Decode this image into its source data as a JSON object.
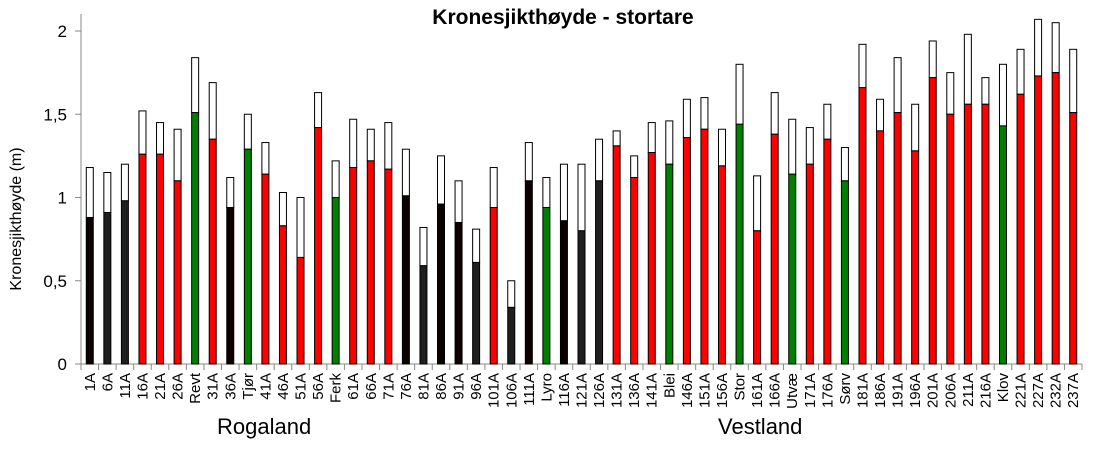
{
  "chart_data": {
    "type": "bar",
    "stacked": true,
    "title": "Kronesjikthøyde - stortare",
    "ylabel": "Kronesjikthøyde  (m)",
    "xlabel": "",
    "ylim": [
      0,
      2.1
    ],
    "yticks": [
      "0",
      "0,5",
      "1",
      "1,5",
      "2"
    ],
    "ytick_values": [
      0,
      0.5,
      1,
      1.5,
      2
    ],
    "grid": false,
    "groups": [
      {
        "label": "Rogaland",
        "from": "1A",
        "to": "121A"
      },
      {
        "label": "Vestland",
        "from": "126A",
        "to": "237A"
      }
    ],
    "categories": [
      "1A",
      "6A",
      "11A",
      "16A",
      "21A",
      "26A",
      "Revt",
      "31A",
      "36A",
      "Tjør",
      "41A",
      "46A",
      "51A",
      "56A",
      "Ferk",
      "61A",
      "66A",
      "71A",
      "76A",
      "81A",
      "86A",
      "91A",
      "96A",
      "101A",
      "106A",
      "111A",
      "Lyro",
      "116A",
      "121A",
      "126A",
      "131A",
      "136A",
      "141A",
      "Blei",
      "146A",
      "151A",
      "156A",
      "Stor",
      "161A",
      "166A",
      "Utvæ",
      "171A",
      "176A",
      "Sørv",
      "181A",
      "186A",
      "191A",
      "196A",
      "201A",
      "206A",
      "211A",
      "216A",
      "Klov",
      "221A",
      "227A",
      "232A",
      "237A"
    ],
    "lower_values": [
      0.88,
      0.91,
      0.98,
      1.26,
      1.26,
      1.1,
      1.51,
      1.35,
      0.94,
      1.29,
      1.14,
      0.83,
      0.64,
      1.42,
      1.0,
      1.18,
      1.22,
      1.17,
      1.01,
      0.59,
      0.96,
      0.85,
      0.61,
      0.94,
      0.34,
      1.1,
      0.94,
      0.86,
      0.8,
      1.1,
      1.31,
      1.12,
      1.27,
      1.2,
      1.36,
      1.41,
      1.19,
      1.44,
      0.8,
      1.38,
      1.14,
      1.2,
      1.35,
      1.1,
      1.66,
      1.4,
      1.51,
      1.28,
      1.72,
      1.5,
      1.56,
      1.56,
      1.43,
      1.62,
      1.73,
      1.75,
      1.51
    ],
    "total_values": [
      1.18,
      1.15,
      1.2,
      1.52,
      1.45,
      1.41,
      1.84,
      1.69,
      1.12,
      1.5,
      1.33,
      1.03,
      1.0,
      1.63,
      1.22,
      1.47,
      1.41,
      1.45,
      1.29,
      0.82,
      1.25,
      1.1,
      0.81,
      1.18,
      0.5,
      1.33,
      1.12,
      1.2,
      1.2,
      1.35,
      1.4,
      1.25,
      1.45,
      1.46,
      1.59,
      1.6,
      1.41,
      1.8,
      1.13,
      1.63,
      1.47,
      1.42,
      1.56,
      1.3,
      1.92,
      1.59,
      1.84,
      1.56,
      1.94,
      1.75,
      1.98,
      1.72,
      1.8,
      1.89,
      2.07,
      2.05,
      1.89
    ],
    "color_classes": [
      "black",
      "gray",
      "gray",
      "red",
      "red",
      "red",
      "green",
      "red",
      "black",
      "green",
      "red",
      "red",
      "red",
      "red",
      "green",
      "red",
      "red",
      "red",
      "black",
      "gray",
      "black",
      "black",
      "gray",
      "red",
      "gray",
      "black",
      "green",
      "black",
      "gray",
      "gray",
      "red",
      "red",
      "red",
      "green",
      "red",
      "red",
      "red",
      "green",
      "red",
      "red",
      "green",
      "red",
      "red",
      "green",
      "red",
      "red",
      "red",
      "red",
      "red",
      "red",
      "red",
      "red",
      "green",
      "red",
      "red",
      "red",
      "red"
    ],
    "colors": {
      "black": "#0d0000",
      "gray": "#1f1f1f",
      "red": "#ff0000",
      "green": "#008000",
      "upper": "#ffffff"
    }
  }
}
